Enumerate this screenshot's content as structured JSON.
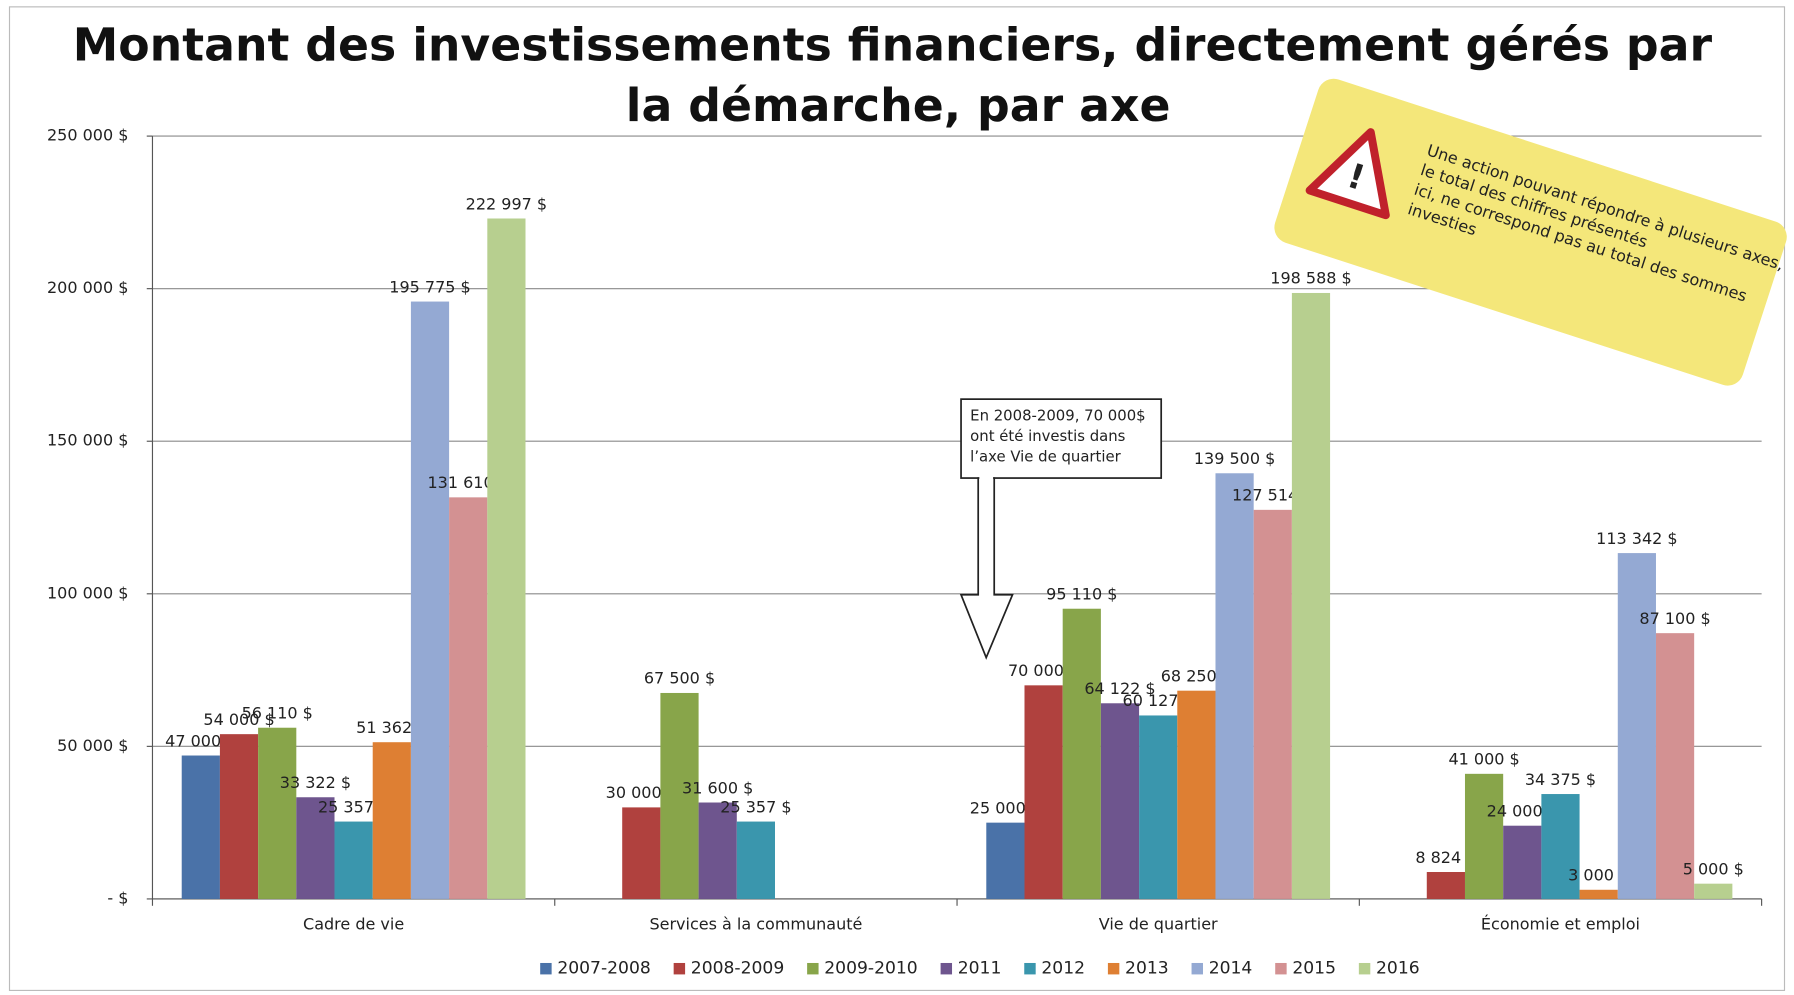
{
  "chart_data": {
    "type": "bar",
    "title": [
      "Montant des investissements financiers, directement gérés par",
      "la démarche, par axe"
    ],
    "categories": [
      "Cadre de vie",
      "Services à la communauté",
      "Vie de quartier",
      "Économie et emploi"
    ],
    "series": [
      {
        "name": "2007-2008",
        "color": "#4a72a8",
        "values": [
          47000,
          null,
          25000,
          null
        ],
        "value_labels": [
          "47 000 $",
          null,
          "25 000 $",
          null
        ]
      },
      {
        "name": "2008-2009",
        "color": "#b0413e",
        "values": [
          54000,
          30000,
          70000,
          8824
        ],
        "value_labels": [
          "54 000 $",
          "30 000 $",
          "70 000 $",
          "8 824 $"
        ]
      },
      {
        "name": "2009-2010",
        "color": "#88a54a",
        "values": [
          56110,
          67500,
          95110,
          41000
        ],
        "value_labels": [
          "56 110 $",
          "67 500 $",
          "95 110 $",
          "41 000 $"
        ]
      },
      {
        "name": "2011",
        "color": "#6e558e",
        "values": [
          33322,
          31600,
          64122,
          24000
        ],
        "value_labels": [
          "33 322 $",
          "31 600 $",
          "64 122 $",
          "24 000 $"
        ]
      },
      {
        "name": "2012",
        "color": "#3a96ad",
        "values": [
          25357,
          25357,
          60127,
          34375
        ],
        "value_labels": [
          "25 357 $",
          "25 357 $",
          "60 127 $",
          "34 375 $"
        ]
      },
      {
        "name": "2013",
        "color": "#de7f33",
        "values": [
          51362,
          null,
          68250,
          3000
        ],
        "value_labels": [
          "51 362 $",
          null,
          "68 250 $",
          "3 000 $"
        ]
      },
      {
        "name": "2014",
        "color": "#94a9d3",
        "values": [
          195775,
          null,
          139500,
          113342
        ],
        "value_labels": [
          "195 775 $",
          null,
          "139 500 $",
          "113 342 $"
        ]
      },
      {
        "name": "2015",
        "color": "#d39192",
        "values": [
          131610,
          null,
          127514,
          87100
        ],
        "value_labels": [
          "131 610 $",
          null,
          "127 514 $",
          "87 100 $"
        ]
      },
      {
        "name": "2016",
        "color": "#b7cf8f",
        "values": [
          222997,
          null,
          198588,
          5000
        ],
        "value_labels": [
          "222 997 $",
          null,
          "198 588 $",
          "5 000 $"
        ]
      }
    ],
    "ylim": [
      0,
      250000
    ],
    "yticks": [
      {
        "value": 0,
        "label": "-   $"
      },
      {
        "value": 50000,
        "label": "50 000  $"
      },
      {
        "value": 100000,
        "label": "100 000  $"
      },
      {
        "value": 150000,
        "label": "150 000  $"
      },
      {
        "value": 200000,
        "label": "200 000  $"
      },
      {
        "value": 250000,
        "label": "250 000  $"
      }
    ],
    "grid": true,
    "legend": "bottom",
    "callout": [
      "En 2008-2009, 70 000$",
      "ont été investis dans",
      "l’axe Vie de quartier"
    ],
    "warning": [
      "Une action pouvant répondre à plusieurs axes,",
      "le total des chiffres présentés",
      "ici, ne correspond pas au total des sommes",
      "investies"
    ]
  }
}
